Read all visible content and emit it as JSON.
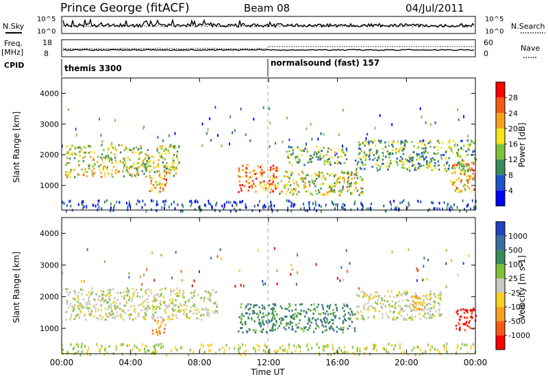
{
  "header": {
    "station": "Prince George (fitACF)",
    "beam": "Beam 08",
    "date": "04/Jul/2011"
  },
  "noise_panel": {
    "left_label": "N.Sky",
    "right_label": "N.Search",
    "left_ticks": [
      "10^5",
      "10^0"
    ],
    "right_ticks": [
      "10^5",
      "10^0"
    ]
  },
  "freq_panel": {
    "left_label": "Freq.",
    "left_unit": "[MHz]",
    "right_label": "Nave",
    "left_ticks": [
      "18",
      "8"
    ],
    "right_ticks": [
      "60",
      "0"
    ]
  },
  "cpid": {
    "label": "CPID",
    "programs": [
      {
        "name": "themis 3300",
        "start_hour": 0
      },
      {
        "name": "normalsound (fast) 157",
        "start_hour": 12
      }
    ]
  },
  "chart_data": [
    {
      "type": "heatmap",
      "parameter": "Power",
      "ylabel": "Slant Range [km]",
      "xlabel": "Time UT",
      "ylim": [
        200,
        4500
      ],
      "xlim_hours": [
        0,
        24
      ],
      "yticks": [
        "1000",
        "2000",
        "3000",
        "4000"
      ],
      "xticks": [
        "00:00",
        "04:00",
        "08:00",
        "12:00",
        "16:00",
        "20:00",
        "00:00"
      ],
      "colorbar": {
        "label": "Power [dB]",
        "ticks": [
          "4",
          "8",
          "12",
          "16",
          "20",
          "24",
          "28"
        ],
        "colors": [
          "#0000ff",
          "#2255cc",
          "#3b8a5a",
          "#7fc03c",
          "#f5e51e",
          "#f7a020",
          "#f55a14",
          "#ff0000"
        ]
      },
      "echo_regions": [
        {
          "t": [
            0.2,
            6.8
          ],
          "range": [
            1300,
            2350
          ],
          "level": "medium-high"
        },
        {
          "t": [
            5.0,
            6.2
          ],
          "range": [
            800,
            1300
          ],
          "level": "high"
        },
        {
          "t": [
            10.2,
            12.5
          ],
          "range": [
            800,
            1700
          ],
          "level": "very high"
        },
        {
          "t": [
            12.5,
            17.5
          ],
          "range": [
            700,
            1500
          ],
          "level": "medium-high"
        },
        {
          "t": [
            13.0,
            16.5
          ],
          "range": [
            1700,
            2300
          ],
          "level": "medium"
        },
        {
          "t": [
            17.0,
            24.0
          ],
          "range": [
            1500,
            2500
          ],
          "level": "medium"
        },
        {
          "t": [
            22.5,
            24.0
          ],
          "range": [
            800,
            1800
          ],
          "level": "high"
        }
      ]
    },
    {
      "type": "heatmap",
      "parameter": "Velocity",
      "ylabel": "Slant Range [km]",
      "xlabel": "Time UT",
      "ylim": [
        200,
        4500
      ],
      "xlim_hours": [
        0,
        24
      ],
      "yticks": [
        "1000",
        "2000",
        "3000",
        "4000"
      ],
      "xticks": [
        "00:00",
        "04:00",
        "08:00",
        "12:00",
        "16:00",
        "20:00",
        "00:00"
      ],
      "colorbar": {
        "label": "Velocity [m s-1]",
        "ticks": [
          "1000",
          "500",
          "100",
          "25",
          "-25",
          "-100",
          "-500",
          "-1000"
        ],
        "colors": [
          "#2244bb",
          "#3b6ea0",
          "#3b8a5a",
          "#7fc03c",
          "#c8c8c0",
          "#f5d020",
          "#f7a020",
          "#f55a14",
          "#ff0000"
        ]
      },
      "echo_regions": [
        {
          "t": [
            0.2,
            9.0
          ],
          "range": [
            1300,
            2300
          ],
          "level": "gray"
        },
        {
          "t": [
            5.2,
            6.0
          ],
          "range": [
            800,
            1300
          ],
          "level": "negative"
        },
        {
          "t": [
            10.2,
            17.0
          ],
          "range": [
            900,
            1800
          ],
          "level": "positive"
        },
        {
          "t": [
            17.0,
            22.0
          ],
          "range": [
            1300,
            2200
          ],
          "level": "gray"
        },
        {
          "t": [
            20.3,
            21.0
          ],
          "range": [
            1600,
            2100
          ],
          "level": "negative"
        },
        {
          "t": [
            22.8,
            24.0
          ],
          "range": [
            900,
            1700
          ],
          "level": "strong negative"
        }
      ]
    }
  ]
}
